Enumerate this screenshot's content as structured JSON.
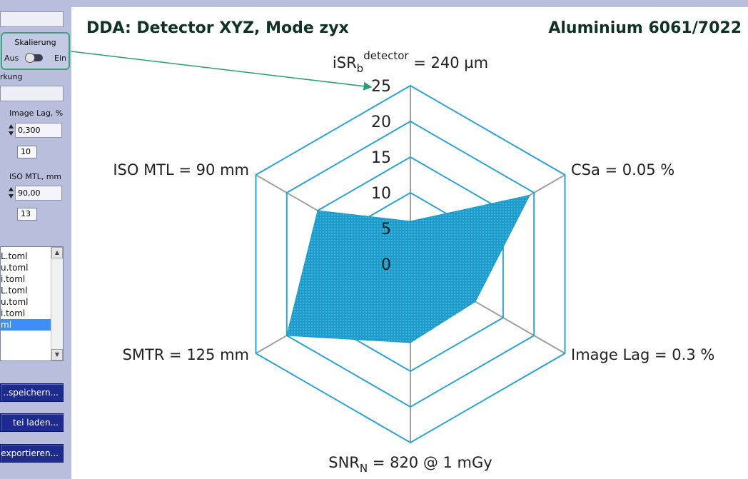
{
  "left_panel": {
    "scaling": {
      "title": "Skalierung",
      "off": "Aus",
      "on": "Ein"
    },
    "remark_label": "rkung",
    "image_lag": {
      "label": "Image Lag, %",
      "value": "0,300",
      "index": "10"
    },
    "iso_mtl": {
      "label": "ISO MTL, mm",
      "value": "90,00",
      "index": "13"
    },
    "files": [
      "L.toml",
      "u.toml",
      "i.toml",
      "L.toml",
      "u.toml",
      "i.toml",
      "ml"
    ],
    "selected_file_index": 6,
    "buttons": {
      "save": "..speichern...",
      "load": "tei laden...",
      "export": "exportieren..."
    }
  },
  "chart": {
    "title": "DDA: Detector XYZ, Mode zyx",
    "material": "Aluminium 6061/7022"
  },
  "chart_data": {
    "type": "radar",
    "axes": [
      {
        "label": "iSR",
        "sub": "b",
        "sup": "detector",
        "rest": " = 240 µm",
        "value": 6.0
      },
      {
        "label": "CSa = 0.05 %",
        "value": 19.3
      },
      {
        "label": "Image Lag = 0.3 %",
        "value": 10.5
      },
      {
        "label": "SNR",
        "sub": "N",
        "rest": " = 820 @ 1 mGy",
        "value": 11.0
      },
      {
        "label": "SMTR = 125 mm",
        "value": 20.0
      },
      {
        "label": "ISO MTL = 90 mm",
        "value": 15.0
      }
    ],
    "ticks": [
      "0",
      "5",
      "10",
      "15",
      "20",
      "25"
    ],
    "rmax": 25,
    "grid_color": "#2ba3d6",
    "spoke_color": "#a0a0a0",
    "fill_color": "#1b9ccc"
  }
}
